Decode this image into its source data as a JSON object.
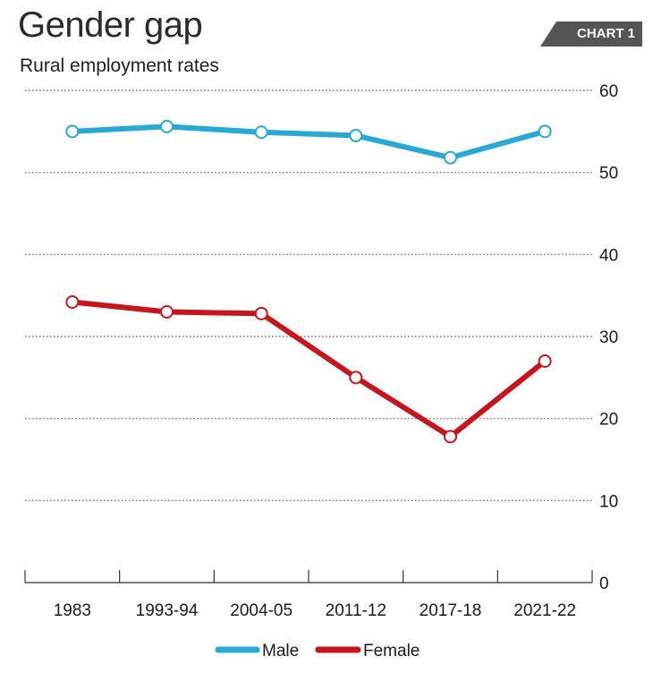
{
  "header": {
    "title": "Gender gap",
    "subtitle": "Rural employment rates",
    "badge": "CHART 1"
  },
  "colors": {
    "male": "#29a8d6",
    "female": "#c4161c",
    "grid": "#555555",
    "badge": "#555555"
  },
  "chart_data": {
    "type": "line",
    "title": "Gender gap",
    "subtitle": "Rural employment rates",
    "categories": [
      "1983",
      "1993-94",
      "2004-05",
      "2011-12",
      "2017-18",
      "2021-22"
    ],
    "series": [
      {
        "name": "Male",
        "values": [
          55,
          55.6,
          54.9,
          54.5,
          51.8,
          55
        ]
      },
      {
        "name": "Female",
        "values": [
          34.2,
          33,
          32.8,
          25,
          17.8,
          27
        ]
      }
    ],
    "y_ticks": [
      0,
      10,
      20,
      30,
      40,
      50,
      60
    ],
    "ylim": [
      0,
      60
    ],
    "grid": true,
    "y_axis_side": "right",
    "legend_position": "bottom-center"
  }
}
